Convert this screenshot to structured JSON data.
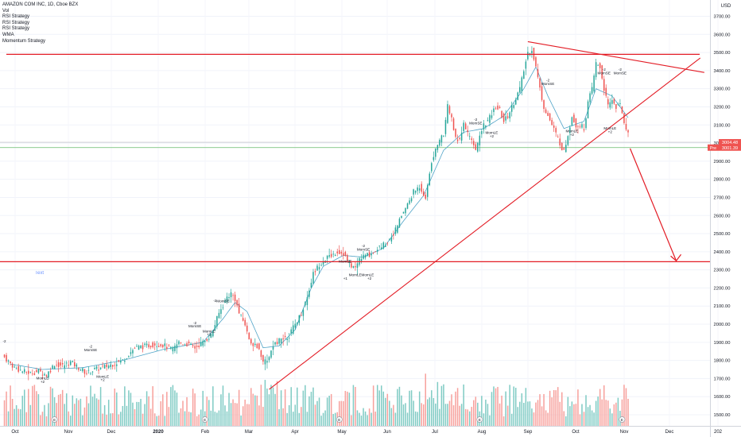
{
  "header": {
    "symbol_title": "AMAZON COM INC, 1D, Cboe BZX",
    "indicators": [
      "Vol",
      "RSI Strategy",
      "RSI Strategy",
      "RSI Strategy",
      "WMA",
      "Momentum Strategy"
    ]
  },
  "colors": {
    "up": "#26a69a",
    "down": "#ef5350",
    "vol_up": "#80cbc4",
    "vol_down": "#f7a19d",
    "drawing": "#e31c25",
    "wma": "#4fa3c7",
    "prev_close_line": "#66bb6a",
    "earnings_marker": "#ffffff"
  },
  "chart_data": {
    "type": "candlestick",
    "currency": "USD",
    "y_ticks": [
      1500,
      1600,
      1700,
      1800,
      1900,
      2000,
      2100,
      2200,
      2300,
      2400,
      2500,
      2600,
      2700,
      2800,
      2900,
      3000,
      3100,
      3200,
      3300,
      3400,
      3500,
      3600,
      3700
    ],
    "y_tick_labels": [
      "1500.00",
      "1600.00",
      "1700.00",
      "1800.00",
      "1900.00",
      "2000.00",
      "2100.00",
      "2200.00",
      "2300.00",
      "2400.00",
      "2500.00",
      "2600.00",
      "2700.00",
      "2800.00",
      "2900.00",
      "3000.00",
      "3100.00",
      "3200.00",
      "3300.00",
      "3400.00",
      "3500.00",
      "3600.00",
      "3700.00"
    ],
    "ylim": [
      1440,
      3780
    ],
    "x_labels": [
      "Oct",
      "Nov",
      "Dec",
      "2020",
      "Feb",
      "Mar",
      "Apr",
      "May",
      "Jun",
      "Jul",
      "Aug",
      "Sep",
      "Oct",
      "Nov",
      "Dec",
      "202"
    ],
    "price_labels": [
      {
        "text": "3004.48",
        "value": 3004.48,
        "color": "#ef5350"
      },
      {
        "text": "3001.39",
        "value": 3001.39,
        "color": "#ef5350",
        "tag": "Pre"
      }
    ],
    "prev_close_value": 3004.48,
    "green_level_value": 2975,
    "series": [
      {
        "name": "Price",
        "anchors": [
          [
            0,
            1830
          ],
          [
            6,
            1760
          ],
          [
            10,
            1740
          ],
          [
            14,
            1730
          ],
          [
            18,
            1740
          ],
          [
            22,
            1720
          ],
          [
            26,
            1780
          ],
          [
            30,
            1770
          ],
          [
            34,
            1790
          ],
          [
            38,
            1760
          ],
          [
            42,
            1730
          ],
          [
            46,
            1750
          ],
          [
            50,
            1760
          ],
          [
            55,
            1780
          ],
          [
            60,
            1800
          ],
          [
            66,
            1870
          ],
          [
            72,
            1880
          ],
          [
            76,
            1890
          ],
          [
            80,
            1885
          ],
          [
            85,
            1860
          ],
          [
            88,
            1900
          ],
          [
            92,
            1890
          ],
          [
            96,
            1870
          ],
          [
            100,
            1900
          ],
          [
            104,
            1940
          ],
          [
            108,
            2060
          ],
          [
            112,
            2150
          ],
          [
            114,
            2170
          ],
          [
            116,
            2140
          ],
          [
            118,
            2060
          ],
          [
            121,
            2000
          ],
          [
            124,
            1880
          ],
          [
            127,
            1880
          ],
          [
            130,
            1790
          ],
          [
            133,
            1820
          ],
          [
            136,
            1900
          ],
          [
            140,
            1920
          ],
          [
            143,
            1940
          ],
          [
            146,
            2000
          ],
          [
            149,
            2060
          ],
          [
            152,
            2150
          ],
          [
            155,
            2280
          ],
          [
            158,
            2330
          ],
          [
            161,
            2360
          ],
          [
            164,
            2380
          ],
          [
            167,
            2400
          ],
          [
            170,
            2390
          ],
          [
            173,
            2330
          ],
          [
            176,
            2310
          ],
          [
            178,
            2360
          ],
          [
            181,
            2380
          ],
          [
            184,
            2390
          ],
          [
            187,
            2420
          ],
          [
            190,
            2440
          ],
          [
            193,
            2470
          ],
          [
            196,
            2520
          ],
          [
            199,
            2600
          ],
          [
            202,
            2660
          ],
          [
            205,
            2730
          ],
          [
            208,
            2760
          ],
          [
            211,
            2700
          ],
          [
            214,
            2900
          ],
          [
            217,
            3000
          ],
          [
            220,
            3050
          ],
          [
            222,
            3200
          ],
          [
            224,
            3150
          ],
          [
            226,
            3020
          ],
          [
            228,
            3010
          ],
          [
            230,
            3100
          ],
          [
            232,
            3050
          ],
          [
            234,
            3010
          ],
          [
            236,
            2950
          ],
          [
            238,
            3050
          ],
          [
            240,
            3100
          ],
          [
            242,
            3120
          ],
          [
            244,
            3160
          ],
          [
            246,
            3200
          ],
          [
            248,
            3180
          ],
          [
            250,
            3120
          ],
          [
            252,
            3150
          ],
          [
            254,
            3200
          ],
          [
            256,
            3250
          ],
          [
            258,
            3300
          ],
          [
            260,
            3400
          ],
          [
            262,
            3500
          ],
          [
            264,
            3520
          ],
          [
            266,
            3420
          ],
          [
            268,
            3300
          ],
          [
            270,
            3200
          ],
          [
            272,
            3150
          ],
          [
            274,
            3100
          ],
          [
            276,
            3050
          ],
          [
            278,
            3000
          ],
          [
            280,
            2950
          ],
          [
            282,
            3050
          ],
          [
            284,
            3150
          ],
          [
            286,
            3100
          ],
          [
            288,
            3100
          ],
          [
            290,
            3080
          ],
          [
            292,
            3220
          ],
          [
            294,
            3300
          ],
          [
            296,
            3440
          ],
          [
            298,
            3420
          ],
          [
            300,
            3300
          ],
          [
            302,
            3200
          ],
          [
            304,
            3240
          ],
          [
            306,
            3200
          ],
          [
            308,
            3210
          ],
          [
            310,
            3120
          ],
          [
            312,
            3050
          ]
        ]
      },
      {
        "name": "WMA",
        "anchors": [
          [
            4,
            1780
          ],
          [
            20,
            1750
          ],
          [
            40,
            1760
          ],
          [
            60,
            1800
          ],
          [
            80,
            1860
          ],
          [
            100,
            1900
          ],
          [
            110,
            2030
          ],
          [
            116,
            2120
          ],
          [
            122,
            2070
          ],
          [
            130,
            1870
          ],
          [
            138,
            1880
          ],
          [
            146,
            1970
          ],
          [
            154,
            2200
          ],
          [
            160,
            2320
          ],
          [
            170,
            2380
          ],
          [
            180,
            2370
          ],
          [
            190,
            2420
          ],
          [
            200,
            2570
          ],
          [
            210,
            2710
          ],
          [
            220,
            2960
          ],
          [
            230,
            3060
          ],
          [
            240,
            3080
          ],
          [
            250,
            3150
          ],
          [
            260,
            3300
          ],
          [
            266,
            3420
          ],
          [
            272,
            3260
          ],
          [
            280,
            3080
          ],
          [
            290,
            3120
          ],
          [
            296,
            3300
          ],
          [
            304,
            3260
          ],
          [
            312,
            3140
          ]
        ]
      }
    ],
    "bars": 312,
    "annotations": {
      "legend_text": "Text",
      "up_marker": "−2\nMomSE",
      "down_marker": "MomLE\n+2",
      "items": [
        {
          "text": "-2",
          "i": 1,
          "price": 1900
        },
        {
          "text": "-2",
          "i": 44,
          "price": 1870
        },
        {
          "text": "MomSE",
          "i": 44,
          "price": 1850
        },
        {
          "text": "-2",
          "i": 96,
          "price": 2000
        },
        {
          "text": "MomSE",
          "i": 96,
          "price": 1982
        },
        {
          "text": "MomLE",
          "i": 103,
          "price": 1955
        },
        {
          "text": "+2",
          "i": 103,
          "price": 1937
        },
        {
          "text": "-2",
          "i": 106,
          "price": 2122
        },
        {
          "text": "MomSE",
          "i": 110,
          "price": 2120
        },
        {
          "text": "MomLE",
          "i": 20,
          "price": 1695
        },
        {
          "text": "+2",
          "i": 20,
          "price": 1676
        },
        {
          "text": "MomLE",
          "i": 50,
          "price": 1705
        },
        {
          "text": "+2",
          "i": 50,
          "price": 1686
        },
        {
          "text": "MomSE",
          "i": 171,
          "price": 2340
        },
        {
          "text": "-2",
          "i": 180,
          "price": 2425
        },
        {
          "text": "MomSE",
          "i": 180,
          "price": 2405
        },
        {
          "text": "MomLEMomLE",
          "i": 179,
          "price": 2265
        },
        {
          "text": "+1",
          "i": 171,
          "price": 2245
        },
        {
          "text": "+2",
          "i": 183,
          "price": 2245
        },
        {
          "text": "-2",
          "i": 236,
          "price": 3123
        },
        {
          "text": "MomSE",
          "i": 236,
          "price": 3104
        },
        {
          "text": "MomLE",
          "i": 244,
          "price": 3050
        },
        {
          "text": "+2",
          "i": 244,
          "price": 3030
        },
        {
          "text": "-2",
          "i": 272,
          "price": 3340
        },
        {
          "text": "MomSE",
          "i": 272,
          "price": 3320
        },
        {
          "text": "MomLE",
          "i": 284,
          "price": 3060
        },
        {
          "text": "+2",
          "i": 284,
          "price": 3040
        },
        {
          "text": "-2",
          "i": 300,
          "price": 3400
        },
        {
          "text": "MomSE",
          "i": 300,
          "price": 3380
        },
        {
          "text": "-2",
          "i": 308,
          "price": 3400
        },
        {
          "text": "MomSE",
          "i": 308,
          "price": 3380
        },
        {
          "text": "MomLE",
          "i": 303,
          "price": 3075
        },
        {
          "text": "+2",
          "i": 303,
          "price": 3056
        }
      ]
    },
    "earnings_markers": [
      {
        "label": "E",
        "i": 26
      },
      {
        "label": "E",
        "i": 101
      },
      {
        "label": "E",
        "i": 168
      },
      {
        "label": "E",
        "i": 238
      },
      {
        "label": "E",
        "i": 309
      }
    ],
    "drawings": {
      "resistance_value": 3490,
      "support_value": 2345,
      "upper_trendline": [
        [
          262,
          3560
        ],
        [
          350,
          3390
        ]
      ],
      "rising_trendline": [
        [
          133,
          1640
        ],
        [
          348,
          3470
        ]
      ],
      "projection_arrow": [
        [
          313,
          2970
        ],
        [
          336,
          2350
        ]
      ]
    }
  }
}
